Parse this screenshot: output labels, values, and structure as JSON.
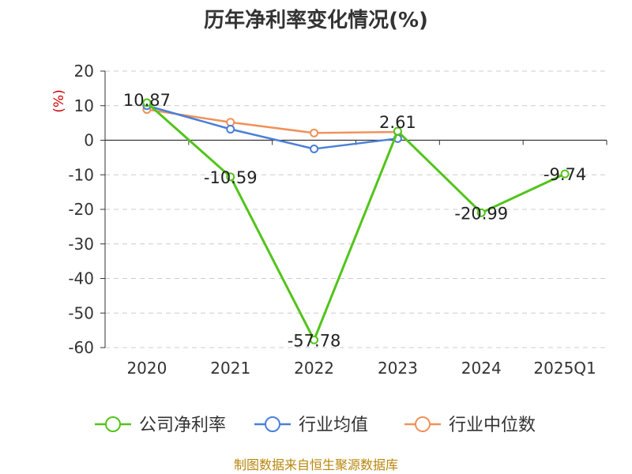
{
  "chart_data": {
    "type": "line",
    "title": "历年净利率变化情况(%)",
    "unit_label": "(%)",
    "categories": [
      "2020",
      "2021",
      "2022",
      "2023",
      "2024",
      "2025Q1"
    ],
    "ylim": [
      -60,
      20
    ],
    "yticks": [
      20,
      10,
      0,
      -10,
      -20,
      -30,
      -40,
      -50,
      -60
    ],
    "grid": true,
    "legend_position": "bottom",
    "series": [
      {
        "name": "公司净利率",
        "color": "#52c41a",
        "values": [
          10.87,
          -10.59,
          -57.78,
          2.61,
          -20.99,
          -9.74
        ],
        "labels": [
          "10.87",
          "-10.59",
          "-57.78",
          "2.61",
          "-20.99",
          "-9.74"
        ]
      },
      {
        "name": "行业均值",
        "color": "#4a7fd8",
        "values": [
          10.0,
          3.2,
          -2.5,
          0.5,
          null,
          null
        ]
      },
      {
        "name": "行业中位数",
        "color": "#f0915a",
        "values": [
          8.9,
          5.2,
          2.1,
          2.4,
          null,
          null
        ]
      }
    ],
    "source": "制图数据来自恒生聚源数据库"
  }
}
